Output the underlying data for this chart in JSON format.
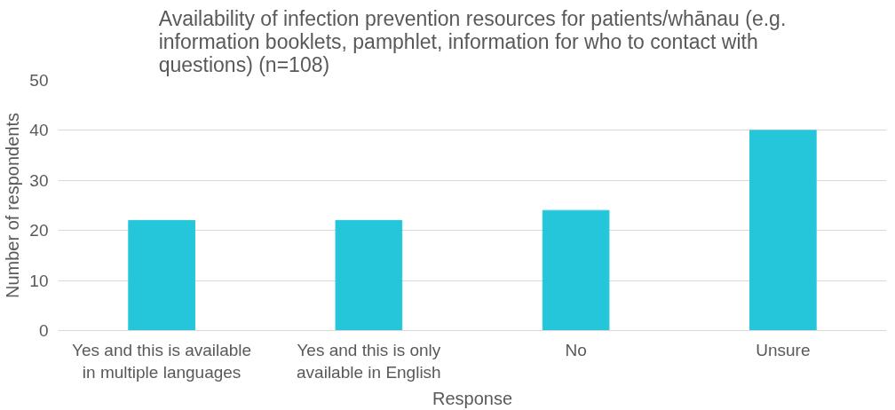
{
  "chart_data": {
    "type": "bar",
    "title": "Availability of infection prevention resources for patients/whānau (e.g. information booklets, pamphlet, information for who to contact with questions) (n=108)",
    "xlabel": "Response",
    "ylabel": "Number of respondents",
    "categories": [
      "Yes and this is available in multiple languages",
      "Yes and this is only available in English",
      "No",
      "Unsure"
    ],
    "values": [
      22,
      22,
      24,
      40
    ],
    "color": "#26c6da",
    "ylim": [
      0,
      50
    ],
    "yticks": [
      0,
      10,
      20,
      30,
      40,
      50
    ],
    "grid": "y"
  }
}
